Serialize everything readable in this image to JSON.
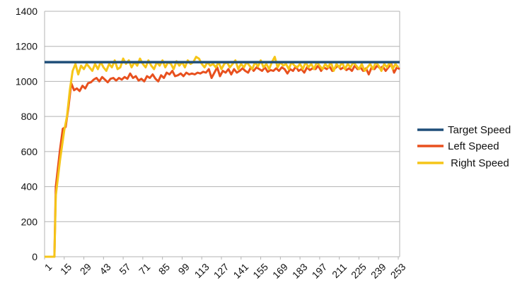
{
  "chart_data": {
    "type": "line",
    "title": "",
    "xlabel": "",
    "ylabel": "",
    "ylim": [
      0,
      1400
    ],
    "xlim": [
      1,
      254
    ],
    "grid": "horizontal",
    "legend": "right",
    "y_ticks": [
      "0",
      "200",
      "400",
      "600",
      "800",
      "1000",
      "1200",
      "1400"
    ],
    "x_ticks": [
      "1",
      "15",
      "29",
      "43",
      "57",
      "71",
      "85",
      "99",
      "113",
      "127",
      "141",
      "155",
      "169",
      "183",
      "197",
      "211",
      "225",
      "239",
      "253"
    ],
    "series": [
      {
        "name": "Target Speed",
        "color": "#1f4e79",
        "points": [
          [
            1,
            1110
          ],
          [
            254,
            1110
          ]
        ]
      },
      {
        "name": "Left Speed",
        "color": "#e8501e",
        "points": [
          [
            1,
            0
          ],
          [
            8,
            0
          ],
          [
            9,
            400
          ],
          [
            12,
            610
          ],
          [
            14,
            730
          ],
          [
            16,
            740
          ],
          [
            18,
            850
          ],
          [
            20,
            990
          ],
          [
            22,
            950
          ],
          [
            24,
            960
          ],
          [
            26,
            945
          ],
          [
            28,
            975
          ],
          [
            30,
            960
          ],
          [
            32,
            990
          ],
          [
            34,
            995
          ],
          [
            36,
            1010
          ],
          [
            38,
            1020
          ],
          [
            40,
            1000
          ],
          [
            42,
            1025
          ],
          [
            44,
            1010
          ],
          [
            46,
            995
          ],
          [
            48,
            1015
          ],
          [
            50,
            1020
          ],
          [
            52,
            1005
          ],
          [
            54,
            1020
          ],
          [
            56,
            1010
          ],
          [
            58,
            1025
          ],
          [
            60,
            1015
          ],
          [
            62,
            1045
          ],
          [
            64,
            1020
          ],
          [
            66,
            1030
          ],
          [
            68,
            1005
          ],
          [
            70,
            1015
          ],
          [
            72,
            1000
          ],
          [
            74,
            1030
          ],
          [
            76,
            1020
          ],
          [
            78,
            1040
          ],
          [
            80,
            1015
          ],
          [
            82,
            1000
          ],
          [
            84,
            1035
          ],
          [
            86,
            1020
          ],
          [
            88,
            1050
          ],
          [
            90,
            1040
          ],
          [
            92,
            1060
          ],
          [
            94,
            1030
          ],
          [
            96,
            1035
          ],
          [
            98,
            1045
          ],
          [
            100,
            1030
          ],
          [
            102,
            1050
          ],
          [
            104,
            1040
          ],
          [
            106,
            1045
          ],
          [
            108,
            1040
          ],
          [
            110,
            1050
          ],
          [
            112,
            1045
          ],
          [
            114,
            1055
          ],
          [
            116,
            1050
          ],
          [
            118,
            1070
          ],
          [
            120,
            1020
          ],
          [
            122,
            1050
          ],
          [
            124,
            1080
          ],
          [
            126,
            1030
          ],
          [
            128,
            1060
          ],
          [
            130,
            1050
          ],
          [
            132,
            1070
          ],
          [
            134,
            1040
          ],
          [
            136,
            1070
          ],
          [
            138,
            1050
          ],
          [
            140,
            1060
          ],
          [
            142,
            1075
          ],
          [
            144,
            1060
          ],
          [
            146,
            1050
          ],
          [
            148,
            1080
          ],
          [
            150,
            1060
          ],
          [
            152,
            1080
          ],
          [
            154,
            1070
          ],
          [
            156,
            1060
          ],
          [
            158,
            1080
          ],
          [
            160,
            1055
          ],
          [
            162,
            1065
          ],
          [
            164,
            1060
          ],
          [
            166,
            1075
          ],
          [
            168,
            1060
          ],
          [
            170,
            1080
          ],
          [
            172,
            1070
          ],
          [
            174,
            1045
          ],
          [
            176,
            1070
          ],
          [
            178,
            1060
          ],
          [
            180,
            1085
          ],
          [
            182,
            1060
          ],
          [
            184,
            1070
          ],
          [
            186,
            1050
          ],
          [
            188,
            1080
          ],
          [
            190,
            1065
          ],
          [
            192,
            1075
          ],
          [
            194,
            1070
          ],
          [
            196,
            1090
          ],
          [
            198,
            1060
          ],
          [
            200,
            1080
          ],
          [
            202,
            1070
          ],
          [
            204,
            1085
          ],
          [
            206,
            1060
          ],
          [
            208,
            1075
          ],
          [
            210,
            1090
          ],
          [
            212,
            1070
          ],
          [
            214,
            1080
          ],
          [
            216,
            1065
          ],
          [
            218,
            1075
          ],
          [
            220,
            1060
          ],
          [
            222,
            1090
          ],
          [
            224,
            1070
          ],
          [
            226,
            1080
          ],
          [
            228,
            1060
          ],
          [
            230,
            1075
          ],
          [
            232,
            1040
          ],
          [
            234,
            1080
          ],
          [
            236,
            1070
          ],
          [
            238,
            1090
          ],
          [
            240,
            1075
          ],
          [
            242,
            1085
          ],
          [
            244,
            1060
          ],
          [
            246,
            1080
          ],
          [
            248,
            1100
          ],
          [
            250,
            1050
          ],
          [
            252,
            1080
          ],
          [
            254,
            1070
          ]
        ]
      },
      {
        "name": " Right Speed",
        "color": "#f5c518",
        "points": [
          [
            1,
            0
          ],
          [
            8,
            0
          ],
          [
            9,
            350
          ],
          [
            12,
            550
          ],
          [
            15,
            720
          ],
          [
            17,
            800
          ],
          [
            19,
            950
          ],
          [
            21,
            1060
          ],
          [
            23,
            1100
          ],
          [
            25,
            1040
          ],
          [
            27,
            1090
          ],
          [
            29,
            1070
          ],
          [
            31,
            1100
          ],
          [
            33,
            1080
          ],
          [
            35,
            1060
          ],
          [
            37,
            1100
          ],
          [
            39,
            1070
          ],
          [
            41,
            1110
          ],
          [
            43,
            1080
          ],
          [
            45,
            1060
          ],
          [
            47,
            1100
          ],
          [
            49,
            1080
          ],
          [
            51,
            1120
          ],
          [
            53,
            1070
          ],
          [
            55,
            1080
          ],
          [
            57,
            1130
          ],
          [
            59,
            1100
          ],
          [
            61,
            1120
          ],
          [
            63,
            1080
          ],
          [
            65,
            1110
          ],
          [
            67,
            1090
          ],
          [
            69,
            1130
          ],
          [
            71,
            1100
          ],
          [
            73,
            1080
          ],
          [
            75,
            1120
          ],
          [
            77,
            1090
          ],
          [
            79,
            1070
          ],
          [
            81,
            1110
          ],
          [
            83,
            1090
          ],
          [
            85,
            1120
          ],
          [
            87,
            1080
          ],
          [
            89,
            1110
          ],
          [
            91,
            1100
          ],
          [
            93,
            1070
          ],
          [
            95,
            1115
          ],
          [
            97,
            1090
          ],
          [
            99,
            1110
          ],
          [
            101,
            1080
          ],
          [
            103,
            1120
          ],
          [
            105,
            1100
          ],
          [
            107,
            1110
          ],
          [
            109,
            1140
          ],
          [
            111,
            1130
          ],
          [
            113,
            1100
          ],
          [
            115,
            1080
          ],
          [
            117,
            1110
          ],
          [
            119,
            1090
          ],
          [
            121,
            1100
          ],
          [
            123,
            1080
          ],
          [
            125,
            1110
          ],
          [
            127,
            1070
          ],
          [
            129,
            1100
          ],
          [
            131,
            1110
          ],
          [
            133,
            1080
          ],
          [
            135,
            1100
          ],
          [
            137,
            1120
          ],
          [
            139,
            1070
          ],
          [
            141,
            1100
          ],
          [
            143,
            1080
          ],
          [
            145,
            1110
          ],
          [
            147,
            1090
          ],
          [
            149,
            1070
          ],
          [
            151,
            1110
          ],
          [
            153,
            1085
          ],
          [
            155,
            1120
          ],
          [
            157,
            1080
          ],
          [
            159,
            1100
          ],
          [
            161,
            1070
          ],
          [
            163,
            1110
          ],
          [
            165,
            1140
          ],
          [
            167,
            1080
          ],
          [
            169,
            1110
          ],
          [
            171,
            1090
          ],
          [
            173,
            1100
          ],
          [
            175,
            1070
          ],
          [
            177,
            1110
          ],
          [
            179,
            1090
          ],
          [
            181,
            1080
          ],
          [
            183,
            1100
          ],
          [
            185,
            1070
          ],
          [
            187,
            1110
          ],
          [
            189,
            1080
          ],
          [
            191,
            1100
          ],
          [
            193,
            1070
          ],
          [
            195,
            1110
          ],
          [
            197,
            1090
          ],
          [
            199,
            1070
          ],
          [
            201,
            1100
          ],
          [
            203,
            1080
          ],
          [
            205,
            1110
          ],
          [
            207,
            1060
          ],
          [
            209,
            1100
          ],
          [
            211,
            1080
          ],
          [
            213,
            1110
          ],
          [
            215,
            1070
          ],
          [
            217,
            1100
          ],
          [
            219,
            1080
          ],
          [
            221,
            1110
          ],
          [
            223,
            1090
          ],
          [
            225,
            1070
          ],
          [
            227,
            1100
          ],
          [
            229,
            1060
          ],
          [
            231,
            1080
          ],
          [
            233,
            1100
          ],
          [
            235,
            1070
          ],
          [
            237,
            1110
          ],
          [
            239,
            1090
          ],
          [
            241,
            1060
          ],
          [
            243,
            1100
          ],
          [
            245,
            1080
          ],
          [
            247,
            1110
          ],
          [
            249,
            1070
          ],
          [
            251,
            1100
          ],
          [
            253,
            1080
          ]
        ]
      }
    ]
  }
}
